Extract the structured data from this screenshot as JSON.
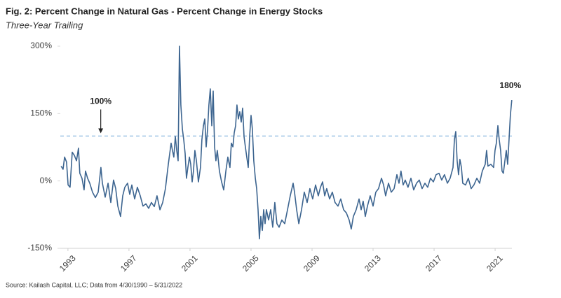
{
  "chart_data": {
    "type": "line",
    "title": "Fig. 2: Percent Change in Natural Gas - Percent Change in Energy Stocks",
    "subtitle": "Three-Year Trailing",
    "source": "Source: Kailash Capital, LLC; Data from 4/30/1990 – 5/31/2022",
    "color": "#3d6590",
    "x": [
      1992.55,
      1992.68,
      1992.78,
      1992.91,
      1993.01,
      1993.14,
      1993.28,
      1993.42,
      1993.56,
      1993.69,
      1993.78,
      1993.92,
      1994.06,
      1994.15,
      1994.29,
      1994.43,
      1994.61,
      1994.8,
      1994.98,
      1995.16,
      1995.26,
      1995.44,
      1995.63,
      1995.81,
      1995.99,
      1996.13,
      1996.27,
      1996.45,
      1996.59,
      1996.73,
      1996.91,
      1997.05,
      1997.19,
      1997.37,
      1997.55,
      1997.74,
      1997.92,
      1998.11,
      1998.29,
      1998.47,
      1998.66,
      1998.84,
      1999.03,
      1999.21,
      1999.39,
      1999.58,
      1999.76,
      1999.85,
      1999.94,
      2000.04,
      2000.13,
      2000.22,
      2000.31,
      2000.4,
      2000.5,
      2000.59,
      2000.68,
      2000.77,
      2000.86,
      2000.96,
      2001.05,
      2001.14,
      2001.23,
      2001.32,
      2001.42,
      2001.55,
      2001.69,
      2001.78,
      2001.88,
      2001.97,
      2002.06,
      2002.15,
      2002.24,
      2002.33,
      2002.43,
      2002.52,
      2002.61,
      2002.7,
      2002.79,
      2002.93,
      2003.07,
      2003.21,
      2003.35,
      2003.48,
      2003.62,
      2003.71,
      2003.81,
      2003.9,
      2003.99,
      2004.08,
      2004.17,
      2004.26,
      2004.36,
      2004.45,
      2004.54,
      2004.63,
      2004.72,
      2004.82,
      2004.91,
      2005.0,
      2005.09,
      2005.18,
      2005.28,
      2005.37,
      2005.46,
      2005.55,
      2005.64,
      2005.74,
      2005.83,
      2005.92,
      2006.01,
      2006.15,
      2006.29,
      2006.42,
      2006.56,
      2006.7,
      2006.84,
      2007.02,
      2007.21,
      2007.39,
      2007.57,
      2007.76,
      2007.85,
      2007.99,
      2008.13,
      2008.31,
      2008.49,
      2008.68,
      2008.86,
      2009.04,
      2009.23,
      2009.41,
      2009.55,
      2009.69,
      2009.83,
      2009.96,
      2010.15,
      2010.33,
      2010.51,
      2010.7,
      2010.88,
      2011.07,
      2011.25,
      2011.43,
      2011.57,
      2011.71,
      2011.89,
      2012.08,
      2012.22,
      2012.35,
      2012.49,
      2012.63,
      2012.81,
      2013.0,
      2013.18,
      2013.36,
      2013.55,
      2013.69,
      2013.82,
      2014.01,
      2014.19,
      2014.38,
      2014.56,
      2014.7,
      2014.83,
      2014.97,
      2015.11,
      2015.29,
      2015.48,
      2015.66,
      2015.85,
      2016.03,
      2016.21,
      2016.4,
      2016.58,
      2016.76,
      2016.95,
      2017.13,
      2017.32,
      2017.5,
      2017.68,
      2017.87,
      2018.05,
      2018.24,
      2018.33,
      2018.42,
      2018.51,
      2018.6,
      2018.69,
      2018.79,
      2018.88,
      2019.06,
      2019.24,
      2019.43,
      2019.61,
      2019.8,
      2019.98,
      2020.16,
      2020.35,
      2020.44,
      2020.53,
      2020.72,
      2020.9,
      2020.99,
      2021.08,
      2021.18,
      2021.27,
      2021.36,
      2021.45,
      2021.54,
      2021.64,
      2021.73,
      2021.82,
      2021.91,
      2022.0,
      2022.09
    ],
    "values": [
      33,
      26,
      53,
      42,
      -9,
      -14,
      64,
      57,
      45,
      73,
      17,
      6,
      -20,
      22,
      6,
      -5,
      -25,
      -37,
      -25,
      30,
      -5,
      -36,
      -5,
      -48,
      2,
      -17,
      -56,
      -79,
      -33,
      -14,
      -5,
      -30,
      -9,
      -40,
      -14,
      -33,
      -56,
      -51,
      -61,
      -48,
      -57,
      -33,
      -64,
      -48,
      -17,
      37,
      84,
      68,
      53,
      99,
      68,
      45,
      300,
      169,
      115,
      92,
      61,
      6,
      30,
      53,
      37,
      -2,
      22,
      68,
      45,
      -2,
      30,
      92,
      123,
      138,
      76,
      115,
      169,
      205,
      123,
      200,
      76,
      45,
      68,
      22,
      -2,
      -20,
      22,
      53,
      30,
      84,
      76,
      107,
      123,
      169,
      138,
      154,
      131,
      162,
      99,
      76,
      53,
      30,
      99,
      146,
      115,
      45,
      6,
      -17,
      -64,
      -129,
      -79,
      -110,
      -64,
      -95,
      -64,
      -87,
      -64,
      -103,
      -48,
      -95,
      -103,
      -87,
      -95,
      -64,
      -33,
      -5,
      -25,
      -64,
      -95,
      -64,
      -25,
      -48,
      -17,
      -40,
      -9,
      -33,
      -14,
      -2,
      -33,
      -17,
      -40,
      -25,
      -48,
      -56,
      -40,
      -64,
      -71,
      -87,
      -107,
      -79,
      -64,
      -40,
      -64,
      -45,
      -79,
      -56,
      -33,
      -56,
      -25,
      -17,
      6,
      -9,
      -33,
      -5,
      -25,
      -17,
      14,
      -5,
      22,
      -9,
      2,
      -14,
      6,
      -20,
      -5,
      2,
      -17,
      -5,
      -14,
      6,
      -2,
      14,
      17,
      2,
      14,
      -5,
      6,
      30,
      92,
      110,
      45,
      14,
      48,
      30,
      -5,
      -9,
      6,
      -17,
      -9,
      6,
      -5,
      22,
      37,
      68,
      33,
      37,
      30,
      68,
      84,
      123,
      92,
      68,
      22,
      17,
      45,
      68,
      37,
      92,
      146,
      180
    ],
    "xlim": [
      1992.5,
      2022.1
    ],
    "xticks": [
      1993,
      1997,
      2001,
      2005,
      2009,
      2013,
      2017,
      2021
    ],
    "ylim": [
      -150,
      300
    ],
    "yticks": [
      {
        "value": 300,
        "label": "300%"
      },
      {
        "value": 150,
        "label": "150%"
      },
      {
        "value": 0,
        "label": "0%"
      },
      {
        "value": -150,
        "label": "-150%"
      }
    ],
    "reference_line": {
      "value": 100,
      "color": "#9dc3e6"
    },
    "annotations": [
      {
        "text": "100%",
        "x": 1995.15,
        "y": 100
      },
      {
        "text": "180%",
        "x": 2022.09,
        "y": 180
      }
    ]
  }
}
